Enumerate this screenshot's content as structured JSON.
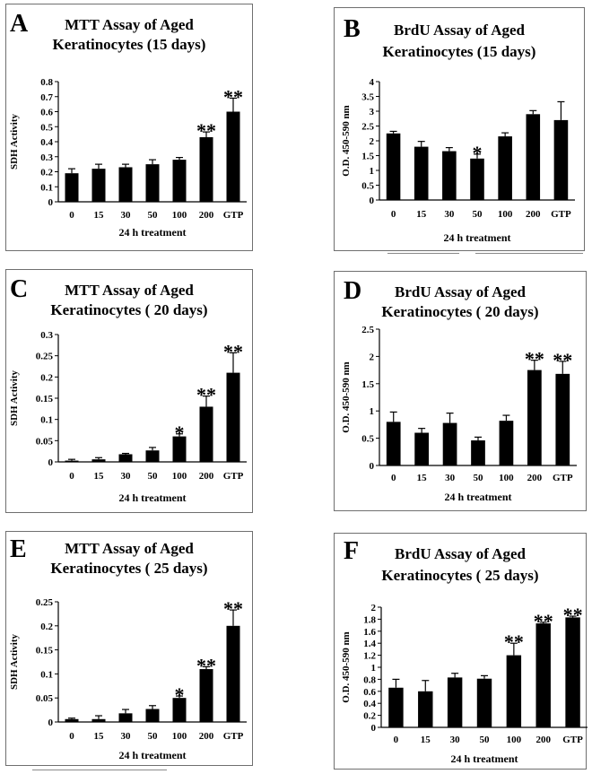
{
  "charts": [
    {
      "letter": "A",
      "title_line1": "MTT Assay of Aged",
      "title_line2": "Keratinocytes (15 days)",
      "chart_data": {
        "type": "bar",
        "categories": [
          "0",
          "15",
          "30",
          "50",
          "100",
          "200",
          "GTP"
        ],
        "values": [
          0.19,
          0.22,
          0.23,
          0.25,
          0.28,
          0.43,
          0.6
        ],
        "errors": [
          0.03,
          0.03,
          0.02,
          0.03,
          0.015,
          0.035,
          0.09
        ],
        "annotations": [
          "",
          "",
          "",
          "",
          "",
          "**",
          "**"
        ],
        "ylabel": "SDH Activity",
        "xlabel": "24 h treatment",
        "ylim": [
          0,
          0.8
        ],
        "yticks": [
          0,
          0.1,
          0.2,
          0.3,
          0.4,
          0.5,
          0.6,
          0.7,
          0.8
        ],
        "ytick_labels": [
          "0",
          "0.1",
          "0.2",
          "0.3",
          "0.4",
          "0.5",
          "0.6",
          "0.7",
          "0.8"
        ]
      }
    },
    {
      "letter": "B",
      "title_line1": "BrdU Assay of Aged",
      "title_line2": "Keratinocytes (15 days)",
      "chart_data": {
        "type": "bar",
        "categories": [
          "0",
          "15",
          "30",
          "50",
          "100",
          "200",
          "GTP"
        ],
        "values": [
          2.25,
          1.8,
          1.65,
          1.4,
          2.15,
          2.9,
          2.7
        ],
        "errors": [
          0.07,
          0.18,
          0.12,
          0.15,
          0.12,
          0.12,
          0.62
        ],
        "annotations": [
          "",
          "",
          "",
          "*",
          "",
          "",
          ""
        ],
        "ylabel": "O.D. 450-590 nm",
        "xlabel": "24 h treatment",
        "ylim": [
          0,
          4
        ],
        "yticks": [
          0,
          0.5,
          1,
          1.5,
          2,
          2.5,
          3,
          3.5,
          4
        ],
        "ytick_labels": [
          "0",
          "0.5",
          "1",
          "1.5",
          "2",
          "2.5",
          "3",
          "3.5",
          "4"
        ]
      }
    },
    {
      "letter": "C",
      "title_line1": "MTT Assay of Aged",
      "title_line2": "Keratinocytes ( 20 days)",
      "chart_data": {
        "type": "bar",
        "categories": [
          "0",
          "15",
          "30",
          "50",
          "100",
          "200",
          "GTP"
        ],
        "values": [
          0.003,
          0.006,
          0.018,
          0.027,
          0.06,
          0.13,
          0.21
        ],
        "errors": [
          0.003,
          0.004,
          0.002,
          0.007,
          0.006,
          0.025,
          0.047
        ],
        "annotations": [
          "",
          "",
          "",
          "",
          "*",
          "**",
          "**"
        ],
        "ylabel": "SDH Activity",
        "xlabel": "24 h treatment",
        "ylim": [
          0,
          0.3
        ],
        "yticks": [
          0,
          0.05,
          0.1,
          0.15,
          0.2,
          0.25,
          0.3
        ],
        "ytick_labels": [
          "0",
          "0.05",
          "0.1",
          "0.15",
          "0.2",
          "0.25",
          "0.3"
        ]
      }
    },
    {
      "letter": "D",
      "title_line1": "BrdU Assay of Aged",
      "title_line2": "Keratinocytes ( 20 days)",
      "chart_data": {
        "type": "bar",
        "categories": [
          "0",
          "15",
          "30",
          "50",
          "100",
          "200",
          "GTP"
        ],
        "values": [
          0.8,
          0.6,
          0.78,
          0.46,
          0.82,
          1.75,
          1.68
        ],
        "errors": [
          0.18,
          0.08,
          0.18,
          0.06,
          0.1,
          0.18,
          0.23
        ],
        "annotations": [
          "",
          "",
          "",
          "",
          "",
          "**",
          "**"
        ],
        "ylabel": "O.D. 450-590 nm",
        "xlabel": "24 h treatment",
        "ylim": [
          0,
          2.5
        ],
        "yticks": [
          0,
          0.5,
          1,
          1.5,
          2,
          2.5
        ],
        "ytick_labels": [
          "0",
          "0.5",
          "1",
          "1.5",
          "2",
          "2.5"
        ]
      }
    },
    {
      "letter": "E",
      "title_line1": "MTT Assay of Aged",
      "title_line2": "Keratinocytes ( 25 days)",
      "chart_data": {
        "type": "bar",
        "categories": [
          "0",
          "15",
          "30",
          "50",
          "100",
          "200",
          "GTP"
        ],
        "values": [
          0.006,
          0.006,
          0.018,
          0.027,
          0.05,
          0.11,
          0.2
        ],
        "errors": [
          0.002,
          0.007,
          0.008,
          0.007,
          0.004,
          0.005,
          0.033
        ],
        "annotations": [
          "",
          "",
          "",
          "",
          "*",
          "**",
          "**"
        ],
        "ylabel": "SDH Activity",
        "xlabel": "24 h treatment",
        "ylim": [
          0,
          0.25
        ],
        "yticks": [
          0,
          0.05,
          0.1,
          0.15,
          0.2,
          0.25
        ],
        "ytick_labels": [
          "0",
          "0.05",
          "0.1",
          "0.15",
          "0.2",
          "0.25"
        ]
      }
    },
    {
      "letter": "F",
      "title_line1": "BrdU Assay of Aged",
      "title_line2": "Keratinocytes ( 25 days)",
      "chart_data": {
        "type": "bar",
        "categories": [
          "0",
          "15",
          "30",
          "50",
          "100",
          "200",
          "GTP"
        ],
        "values": [
          0.66,
          0.6,
          0.83,
          0.81,
          1.2,
          1.73,
          1.83
        ],
        "errors": [
          0.14,
          0.18,
          0.07,
          0.05,
          0.2,
          0.02,
          0.02
        ],
        "annotations": [
          "",
          "",
          "",
          "",
          "**",
          "**",
          "**"
        ],
        "ylabel": "O.D. 450-590 nm",
        "xlabel": "24 h treatment",
        "ylim": [
          0,
          2
        ],
        "yticks": [
          0,
          0.2,
          0.4,
          0.6,
          0.8,
          1,
          1.2,
          1.4,
          1.6,
          1.8,
          2
        ],
        "ytick_labels": [
          "0",
          "0.2",
          "0.4",
          "0.6",
          "0.8",
          "1",
          "1.2",
          "1.4",
          "1.6",
          "1.8",
          "2"
        ]
      }
    }
  ]
}
